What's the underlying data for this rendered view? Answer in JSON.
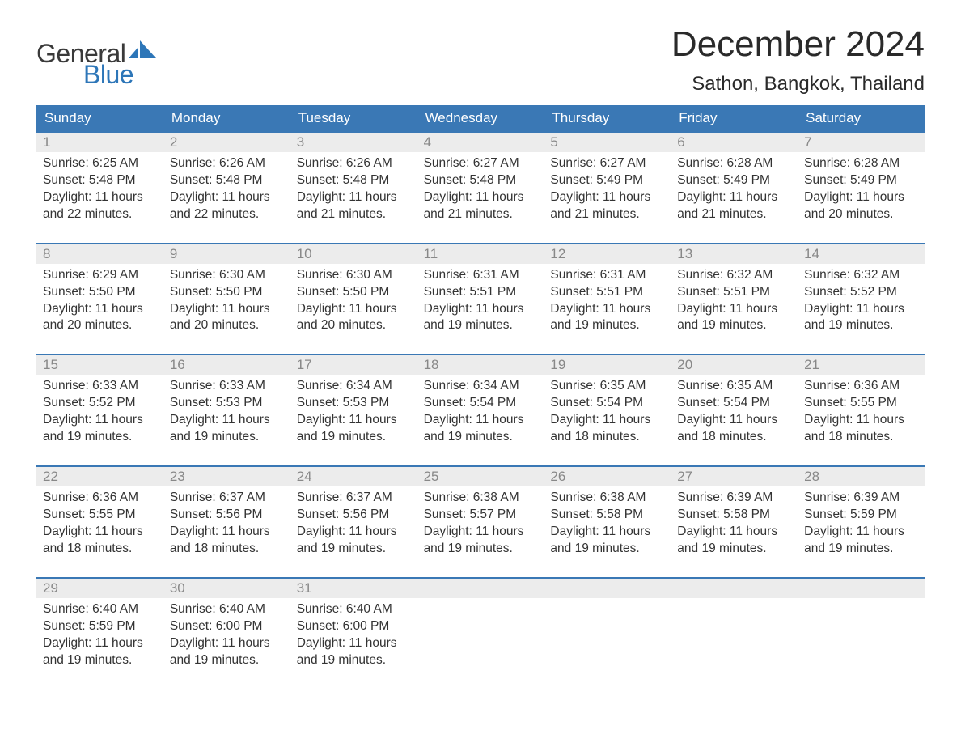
{
  "brand": {
    "word1": "General",
    "word2": "Blue",
    "accent_color": "#2d76b8"
  },
  "title": "December 2024",
  "location": "Sathon, Bangkok, Thailand",
  "colors": {
    "header_bg": "#3a78b5",
    "header_text": "#ffffff",
    "daynum_bg": "#ececec",
    "daynum_text": "#888888",
    "body_text": "#333333",
    "week_border": "#3a78b5",
    "page_bg": "#ffffff"
  },
  "day_names": [
    "Sunday",
    "Monday",
    "Tuesday",
    "Wednesday",
    "Thursday",
    "Friday",
    "Saturday"
  ],
  "labels": {
    "sunrise": "Sunrise:",
    "sunset": "Sunset:",
    "daylight": "Daylight:"
  },
  "days": [
    {
      "n": 1,
      "sunrise": "6:25 AM",
      "sunset": "5:48 PM",
      "daylight": "11 hours and 22 minutes."
    },
    {
      "n": 2,
      "sunrise": "6:26 AM",
      "sunset": "5:48 PM",
      "daylight": "11 hours and 22 minutes."
    },
    {
      "n": 3,
      "sunrise": "6:26 AM",
      "sunset": "5:48 PM",
      "daylight": "11 hours and 21 minutes."
    },
    {
      "n": 4,
      "sunrise": "6:27 AM",
      "sunset": "5:48 PM",
      "daylight": "11 hours and 21 minutes."
    },
    {
      "n": 5,
      "sunrise": "6:27 AM",
      "sunset": "5:49 PM",
      "daylight": "11 hours and 21 minutes."
    },
    {
      "n": 6,
      "sunrise": "6:28 AM",
      "sunset": "5:49 PM",
      "daylight": "11 hours and 21 minutes."
    },
    {
      "n": 7,
      "sunrise": "6:28 AM",
      "sunset": "5:49 PM",
      "daylight": "11 hours and 20 minutes."
    },
    {
      "n": 8,
      "sunrise": "6:29 AM",
      "sunset": "5:50 PM",
      "daylight": "11 hours and 20 minutes."
    },
    {
      "n": 9,
      "sunrise": "6:30 AM",
      "sunset": "5:50 PM",
      "daylight": "11 hours and 20 minutes."
    },
    {
      "n": 10,
      "sunrise": "6:30 AM",
      "sunset": "5:50 PM",
      "daylight": "11 hours and 20 minutes."
    },
    {
      "n": 11,
      "sunrise": "6:31 AM",
      "sunset": "5:51 PM",
      "daylight": "11 hours and 19 minutes."
    },
    {
      "n": 12,
      "sunrise": "6:31 AM",
      "sunset": "5:51 PM",
      "daylight": "11 hours and 19 minutes."
    },
    {
      "n": 13,
      "sunrise": "6:32 AM",
      "sunset": "5:51 PM",
      "daylight": "11 hours and 19 minutes."
    },
    {
      "n": 14,
      "sunrise": "6:32 AM",
      "sunset": "5:52 PM",
      "daylight": "11 hours and 19 minutes."
    },
    {
      "n": 15,
      "sunrise": "6:33 AM",
      "sunset": "5:52 PM",
      "daylight": "11 hours and 19 minutes."
    },
    {
      "n": 16,
      "sunrise": "6:33 AM",
      "sunset": "5:53 PM",
      "daylight": "11 hours and 19 minutes."
    },
    {
      "n": 17,
      "sunrise": "6:34 AM",
      "sunset": "5:53 PM",
      "daylight": "11 hours and 19 minutes."
    },
    {
      "n": 18,
      "sunrise": "6:34 AM",
      "sunset": "5:54 PM",
      "daylight": "11 hours and 19 minutes."
    },
    {
      "n": 19,
      "sunrise": "6:35 AM",
      "sunset": "5:54 PM",
      "daylight": "11 hours and 18 minutes."
    },
    {
      "n": 20,
      "sunrise": "6:35 AM",
      "sunset": "5:54 PM",
      "daylight": "11 hours and 18 minutes."
    },
    {
      "n": 21,
      "sunrise": "6:36 AM",
      "sunset": "5:55 PM",
      "daylight": "11 hours and 18 minutes."
    },
    {
      "n": 22,
      "sunrise": "6:36 AM",
      "sunset": "5:55 PM",
      "daylight": "11 hours and 18 minutes."
    },
    {
      "n": 23,
      "sunrise": "6:37 AM",
      "sunset": "5:56 PM",
      "daylight": "11 hours and 18 minutes."
    },
    {
      "n": 24,
      "sunrise": "6:37 AM",
      "sunset": "5:56 PM",
      "daylight": "11 hours and 19 minutes."
    },
    {
      "n": 25,
      "sunrise": "6:38 AM",
      "sunset": "5:57 PM",
      "daylight": "11 hours and 19 minutes."
    },
    {
      "n": 26,
      "sunrise": "6:38 AM",
      "sunset": "5:58 PM",
      "daylight": "11 hours and 19 minutes."
    },
    {
      "n": 27,
      "sunrise": "6:39 AM",
      "sunset": "5:58 PM",
      "daylight": "11 hours and 19 minutes."
    },
    {
      "n": 28,
      "sunrise": "6:39 AM",
      "sunset": "5:59 PM",
      "daylight": "11 hours and 19 minutes."
    },
    {
      "n": 29,
      "sunrise": "6:40 AM",
      "sunset": "5:59 PM",
      "daylight": "11 hours and 19 minutes."
    },
    {
      "n": 30,
      "sunrise": "6:40 AM",
      "sunset": "6:00 PM",
      "daylight": "11 hours and 19 minutes."
    },
    {
      "n": 31,
      "sunrise": "6:40 AM",
      "sunset": "6:00 PM",
      "daylight": "11 hours and 19 minutes."
    }
  ],
  "start_weekday": 0,
  "auto": {
    "sunrise_label": "Sunrise: ",
    "sunset_label": "Sunset: ",
    "daylight_label": "Daylight: "
  }
}
